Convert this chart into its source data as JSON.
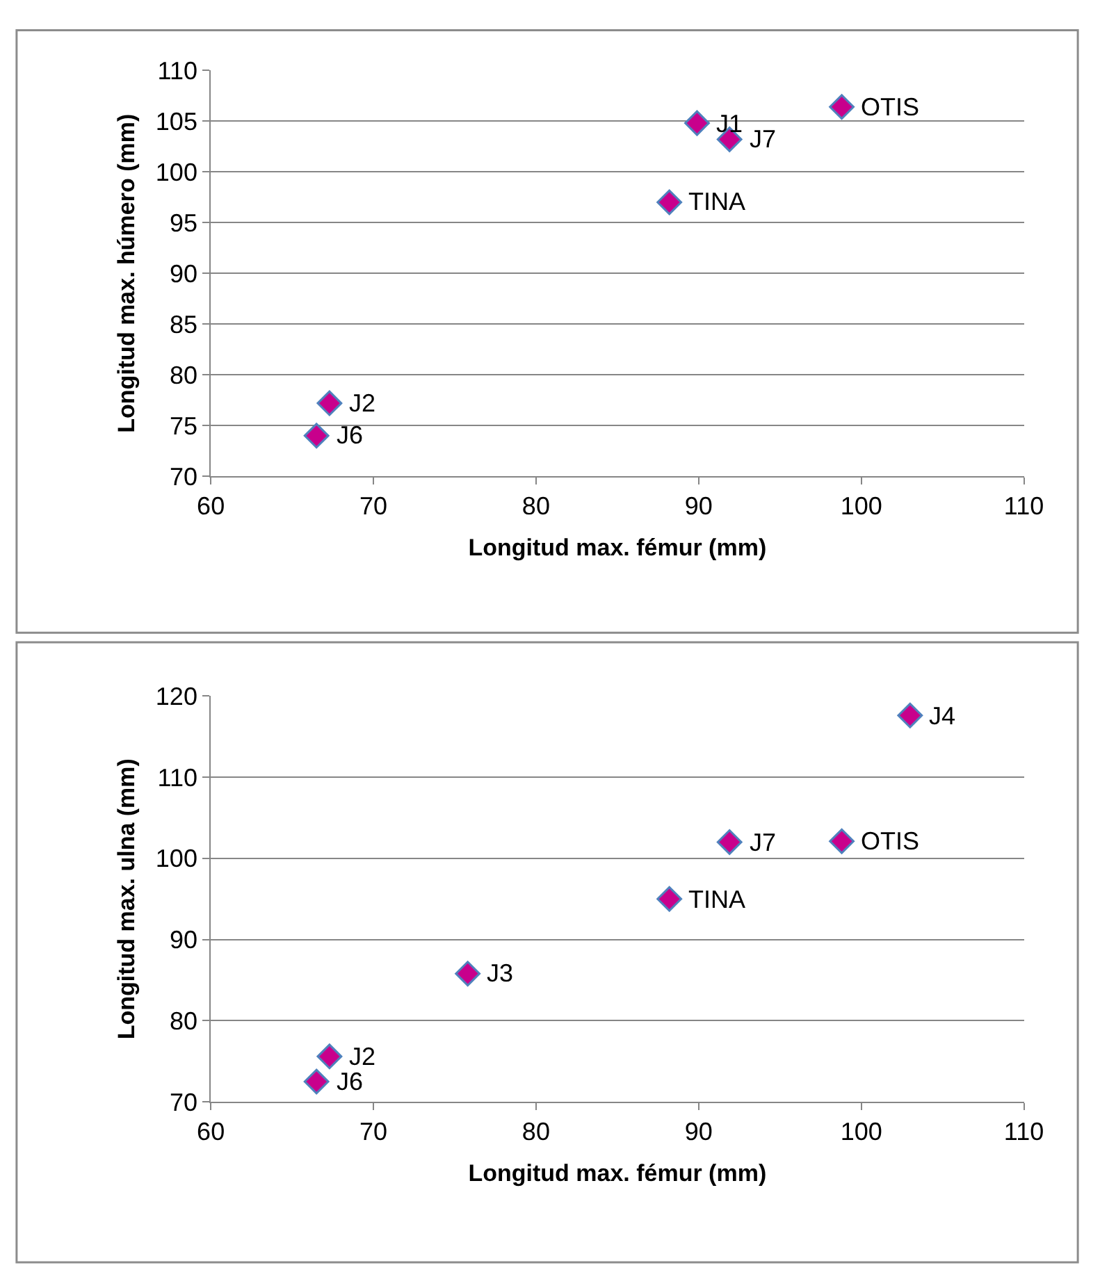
{
  "chart_data": [
    {
      "type": "scatter",
      "xlabel": "Longitud max. fémur (mm)",
      "ylabel": "Longitud max. húmero (mm)",
      "x": [
        89.9,
        91.9,
        98.8,
        88.2,
        67.3,
        66.5
      ],
      "values": [
        104.8,
        103.2,
        106.4,
        97.0,
        77.2,
        74.0
      ],
      "color": "#c8008c",
      "marker": "diamond",
      "grid": "y",
      "xlim": [
        60,
        110
      ],
      "xticks": [
        60,
        70,
        80,
        90,
        100,
        110
      ],
      "ylim": [
        70,
        110
      ],
      "yticks": [
        70,
        75,
        80,
        85,
        90,
        95,
        100,
        105,
        110
      ],
      "annotations": [
        {
          "text": "J1",
          "x": 89.9,
          "y": 104.8
        },
        {
          "text": "J7",
          "x": 91.9,
          "y": 103.2
        },
        {
          "text": "OTIS",
          "x": 98.8,
          "y": 106.4
        },
        {
          "text": "TINA",
          "x": 88.2,
          "y": 97.0
        },
        {
          "text": "J2",
          "x": 67.3,
          "y": 77.2
        },
        {
          "text": "J6",
          "x": 66.5,
          "y": 74.0
        }
      ]
    },
    {
      "type": "scatter",
      "xlabel": "Longitud max. fémur (mm)",
      "ylabel": "Longitud max. ulna (mm)",
      "x": [
        103.0,
        91.9,
        98.8,
        88.2,
        75.8,
        67.3,
        66.5
      ],
      "values": [
        117.6,
        102.0,
        102.1,
        95.0,
        85.8,
        75.6,
        72.5
      ],
      "color": "#c8008c",
      "marker": "diamond",
      "grid": "y",
      "xlim": [
        60,
        110
      ],
      "xticks": [
        60,
        70,
        80,
        90,
        100,
        110
      ],
      "ylim": [
        70,
        120
      ],
      "yticks": [
        70,
        80,
        90,
        100,
        110,
        120
      ],
      "annotations": [
        {
          "text": "J4",
          "x": 103.0,
          "y": 117.6
        },
        {
          "text": "J7",
          "x": 91.9,
          "y": 102.0
        },
        {
          "text": "OTIS",
          "x": 98.8,
          "y": 102.1
        },
        {
          "text": "TINA",
          "x": 88.2,
          "y": 95.0
        },
        {
          "text": "J3",
          "x": 75.8,
          "y": 85.8
        },
        {
          "text": "J2",
          "x": 67.3,
          "y": 75.6
        },
        {
          "text": "J6",
          "x": 66.5,
          "y": 72.5
        }
      ]
    }
  ]
}
